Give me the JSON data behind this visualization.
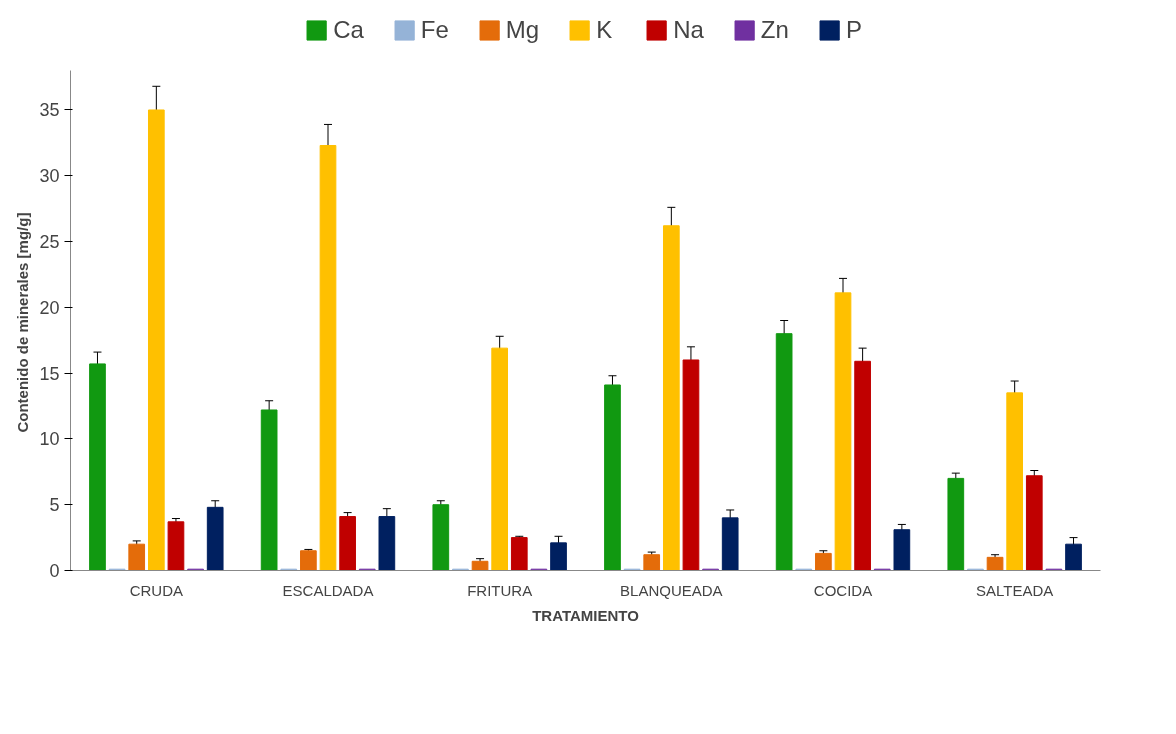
{
  "chart_data": {
    "type": "bar",
    "xlabel": "TRATAMIENTO",
    "ylabel": "Contenido  de minerales [mg/g]",
    "categories": [
      "CRUDA",
      "ESCALDADA",
      "FRITURA",
      "BLANQUEADA",
      "COCIDA",
      "SALTEADA"
    ],
    "series": [
      {
        "name": "Ca",
        "color": "#119911",
        "values": [
          15.7,
          12.2,
          5.0,
          14.1,
          18.0,
          7.0
        ],
        "errors": [
          0.9,
          0.7,
          0.3,
          0.7,
          1.0,
          0.4
        ]
      },
      {
        "name": "Fe",
        "color": "#95b3d7",
        "values": [
          0.1,
          0.1,
          0.1,
          0.1,
          0.1,
          0.1
        ]
      },
      {
        "name": "Mg",
        "color": "#e46c0a",
        "values": [
          2.0,
          1.5,
          0.7,
          1.2,
          1.3,
          1.0
        ],
        "errors": [
          0.25,
          0.1,
          0.2,
          0.2,
          0.2,
          0.2
        ]
      },
      {
        "name": "K",
        "color": "#ffc000",
        "values": [
          35.0,
          32.3,
          16.9,
          26.2,
          21.1,
          13.5
        ],
        "errors": [
          1.8,
          1.6,
          0.9,
          1.4,
          1.1,
          0.9
        ]
      },
      {
        "name": "Na",
        "color": "#c00000",
        "values": [
          3.7,
          4.1,
          2.5,
          16.0,
          15.9,
          7.2
        ],
        "errors": [
          0.25,
          0.3,
          0.1,
          1.0,
          1.0,
          0.4
        ]
      },
      {
        "name": "Zn",
        "color": "#7030a0",
        "values": [
          0.1,
          0.1,
          0.1,
          0.1,
          0.1,
          0.1
        ]
      },
      {
        "name": "P",
        "color": "#002060",
        "values": [
          4.8,
          4.1,
          2.1,
          4.0,
          3.1,
          2.0
        ],
        "errors": [
          0.5,
          0.6,
          0.5,
          0.6,
          0.4,
          0.5
        ]
      }
    ],
    "ylim": [
      0,
      38
    ],
    "yticks": [
      0,
      5,
      10,
      15,
      20,
      25,
      30,
      35
    ],
    "grid": false,
    "legend": "top"
  }
}
